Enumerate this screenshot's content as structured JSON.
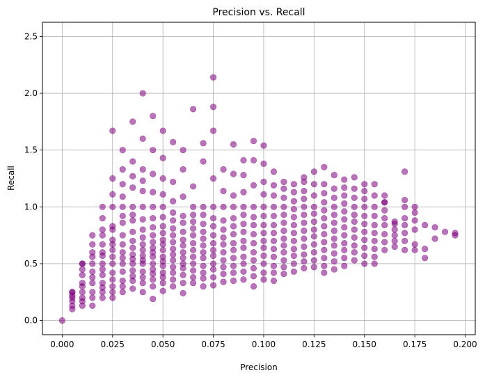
{
  "chart_data": {
    "type": "scatter",
    "title": "Precision vs. Recall",
    "xlabel": "Precision",
    "ylabel": "Recall",
    "xlim": [
      -0.0098,
      0.205
    ],
    "ylim": [
      -0.125,
      2.625
    ],
    "xticks": [
      0.0,
      0.025,
      0.05,
      0.075,
      0.1,
      0.125,
      0.15,
      0.175,
      0.2
    ],
    "xtick_labels": [
      "0.000",
      "0.025",
      "0.050",
      "0.075",
      "0.100",
      "0.125",
      "0.150",
      "0.175",
      "0.200"
    ],
    "yticks": [
      0.0,
      0.5,
      1.0,
      1.5,
      2.0,
      2.5
    ],
    "ytick_labels": [
      "0.0",
      "0.5",
      "1.0",
      "1.5",
      "2.0",
      "2.5"
    ],
    "grid": true,
    "marker_color": "#800080",
    "marker_alpha": 0.55,
    "series": [
      {
        "name": "points",
        "x": [
          0.0,
          0.005,
          0.005,
          0.005,
          0.005,
          0.005,
          0.005,
          0.005,
          0.01,
          0.01,
          0.01,
          0.01,
          0.01,
          0.01,
          0.01,
          0.01,
          0.01,
          0.01,
          0.015,
          0.015,
          0.015,
          0.015,
          0.015,
          0.015,
          0.015,
          0.015,
          0.015,
          0.015,
          0.015,
          0.02,
          0.02,
          0.02,
          0.02,
          0.02,
          0.02,
          0.02,
          0.02,
          0.02,
          0.02,
          0.02,
          0.02,
          0.02,
          0.02,
          0.025,
          0.025,
          0.025,
          0.025,
          0.025,
          0.025,
          0.025,
          0.025,
          0.025,
          0.025,
          0.025,
          0.025,
          0.025,
          0.025,
          0.025,
          0.025,
          0.03,
          0.03,
          0.03,
          0.03,
          0.03,
          0.03,
          0.03,
          0.03,
          0.03,
          0.03,
          0.03,
          0.03,
          0.03,
          0.03,
          0.03,
          0.03,
          0.035,
          0.035,
          0.035,
          0.035,
          0.035,
          0.035,
          0.035,
          0.035,
          0.035,
          0.035,
          0.035,
          0.035,
          0.035,
          0.035,
          0.035,
          0.035,
          0.035,
          0.04,
          0.04,
          0.04,
          0.04,
          0.04,
          0.04,
          0.04,
          0.04,
          0.04,
          0.04,
          0.04,
          0.04,
          0.04,
          0.04,
          0.04,
          0.04,
          0.04,
          0.04,
          0.045,
          0.045,
          0.045,
          0.045,
          0.045,
          0.045,
          0.045,
          0.045,
          0.045,
          0.045,
          0.045,
          0.045,
          0.045,
          0.045,
          0.045,
          0.045,
          0.045,
          0.045,
          0.05,
          0.05,
          0.05,
          0.05,
          0.05,
          0.05,
          0.05,
          0.05,
          0.05,
          0.05,
          0.05,
          0.05,
          0.05,
          0.05,
          0.05,
          0.05,
          0.05,
          0.05,
          0.055,
          0.055,
          0.055,
          0.055,
          0.055,
          0.055,
          0.055,
          0.055,
          0.055,
          0.055,
          0.055,
          0.055,
          0.055,
          0.055,
          0.055,
          0.06,
          0.06,
          0.06,
          0.06,
          0.06,
          0.06,
          0.06,
          0.06,
          0.06,
          0.06,
          0.06,
          0.06,
          0.06,
          0.06,
          0.06,
          0.065,
          0.065,
          0.065,
          0.065,
          0.065,
          0.065,
          0.065,
          0.065,
          0.065,
          0.065,
          0.065,
          0.065,
          0.065,
          0.065,
          0.07,
          0.07,
          0.07,
          0.07,
          0.07,
          0.07,
          0.07,
          0.07,
          0.07,
          0.07,
          0.07,
          0.07,
          0.07,
          0.07,
          0.075,
          0.075,
          0.075,
          0.075,
          0.075,
          0.075,
          0.075,
          0.075,
          0.075,
          0.075,
          0.075,
          0.075,
          0.075,
          0.075,
          0.075,
          0.08,
          0.08,
          0.08,
          0.08,
          0.08,
          0.08,
          0.08,
          0.08,
          0.08,
          0.08,
          0.08,
          0.08,
          0.085,
          0.085,
          0.085,
          0.085,
          0.085,
          0.085,
          0.085,
          0.085,
          0.085,
          0.085,
          0.085,
          0.085,
          0.085,
          0.09,
          0.09,
          0.09,
          0.09,
          0.09,
          0.09,
          0.09,
          0.09,
          0.09,
          0.09,
          0.09,
          0.09,
          0.09,
          0.095,
          0.095,
          0.095,
          0.095,
          0.095,
          0.095,
          0.095,
          0.095,
          0.095,
          0.095,
          0.095,
          0.095,
          0.095,
          0.1,
          0.1,
          0.1,
          0.1,
          0.1,
          0.1,
          0.1,
          0.1,
          0.1,
          0.1,
          0.1,
          0.1,
          0.1,
          0.1,
          0.105,
          0.105,
          0.105,
          0.105,
          0.105,
          0.105,
          0.105,
          0.105,
          0.105,
          0.105,
          0.105,
          0.105,
          0.105,
          0.11,
          0.11,
          0.11,
          0.11,
          0.11,
          0.11,
          0.11,
          0.11,
          0.11,
          0.11,
          0.11,
          0.11,
          0.11,
          0.115,
          0.115,
          0.115,
          0.115,
          0.115,
          0.115,
          0.115,
          0.115,
          0.115,
          0.115,
          0.115,
          0.115,
          0.12,
          0.12,
          0.12,
          0.12,
          0.12,
          0.12,
          0.12,
          0.12,
          0.12,
          0.12,
          0.12,
          0.12,
          0.12,
          0.125,
          0.125,
          0.125,
          0.125,
          0.125,
          0.125,
          0.125,
          0.125,
          0.125,
          0.125,
          0.125,
          0.125,
          0.13,
          0.13,
          0.13,
          0.13,
          0.13,
          0.13,
          0.13,
          0.13,
          0.13,
          0.13,
          0.13,
          0.13,
          0.13,
          0.135,
          0.135,
          0.135,
          0.135,
          0.135,
          0.135,
          0.135,
          0.135,
          0.135,
          0.135,
          0.135,
          0.135,
          0.14,
          0.14,
          0.14,
          0.14,
          0.14,
          0.14,
          0.14,
          0.14,
          0.14,
          0.14,
          0.14,
          0.14,
          0.145,
          0.145,
          0.145,
          0.145,
          0.145,
          0.145,
          0.145,
          0.145,
          0.145,
          0.145,
          0.145,
          0.15,
          0.15,
          0.15,
          0.15,
          0.15,
          0.15,
          0.15,
          0.15,
          0.15,
          0.15,
          0.15,
          0.155,
          0.155,
          0.155,
          0.155,
          0.155,
          0.155,
          0.155,
          0.155,
          0.155,
          0.155,
          0.16,
          0.16,
          0.16,
          0.16,
          0.16,
          0.16,
          0.16,
          0.16,
          0.16,
          0.165,
          0.165,
          0.165,
          0.165,
          0.165,
          0.165,
          0.17,
          0.17,
          0.17,
          0.17,
          0.17,
          0.17,
          0.17,
          0.17,
          0.175,
          0.175,
          0.175,
          0.175,
          0.175,
          0.175,
          0.18,
          0.18,
          0.18,
          0.185,
          0.185,
          0.19,
          0.195,
          0.195
        ],
        "y": [
          0.0,
          0.1,
          0.13,
          0.17,
          0.2,
          0.22,
          0.25,
          0.25,
          0.13,
          0.17,
          0.2,
          0.25,
          0.3,
          0.33,
          0.4,
          0.45,
          0.5,
          0.5,
          0.13,
          0.2,
          0.25,
          0.33,
          0.38,
          0.43,
          0.5,
          0.56,
          0.6,
          0.67,
          0.75,
          0.2,
          0.25,
          0.29,
          0.33,
          0.4,
          0.45,
          0.5,
          0.57,
          0.6,
          0.67,
          0.75,
          0.8,
          0.9,
          1.0,
          0.2,
          0.25,
          0.3,
          0.36,
          0.42,
          0.5,
          0.56,
          0.62,
          0.67,
          0.71,
          0.8,
          0.83,
          1.0,
          1.11,
          1.25,
          1.67,
          0.25,
          0.3,
          0.35,
          0.43,
          0.5,
          0.55,
          0.6,
          0.67,
          0.75,
          0.86,
          0.92,
          1.0,
          1.09,
          1.2,
          1.33,
          1.5,
          0.28,
          0.35,
          0.39,
          0.44,
          0.5,
          0.54,
          0.58,
          0.64,
          0.7,
          0.78,
          0.88,
          0.93,
          1.0,
          1.17,
          1.27,
          1.4,
          1.75,
          0.25,
          0.33,
          0.38,
          0.43,
          0.5,
          0.53,
          0.57,
          0.62,
          0.67,
          0.73,
          0.8,
          0.89,
          1.0,
          1.14,
          1.23,
          1.33,
          1.6,
          2.0,
          0.19,
          0.3,
          0.36,
          0.41,
          0.45,
          0.5,
          0.56,
          0.6,
          0.64,
          0.69,
          0.75,
          0.82,
          0.9,
          1.0,
          1.13,
          1.29,
          1.5,
          1.8,
          0.26,
          0.33,
          0.38,
          0.42,
          0.48,
          0.52,
          0.56,
          0.62,
          0.67,
          0.71,
          0.77,
          0.83,
          0.91,
          1.0,
          1.11,
          1.25,
          1.43,
          1.67,
          0.3,
          0.36,
          0.42,
          0.47,
          0.53,
          0.58,
          0.63,
          0.69,
          0.75,
          0.81,
          0.88,
          0.95,
          1.05,
          1.22,
          1.57,
          0.24,
          0.33,
          0.4,
          0.46,
          0.5,
          0.55,
          0.6,
          0.66,
          0.71,
          0.78,
          0.86,
          0.92,
          1.09,
          1.33,
          1.5,
          0.33,
          0.38,
          0.44,
          0.5,
          0.56,
          0.62,
          0.68,
          0.75,
          0.81,
          0.87,
          0.93,
          1.0,
          1.18,
          1.86,
          0.3,
          0.37,
          0.42,
          0.48,
          0.55,
          0.6,
          0.66,
          0.72,
          0.78,
          0.85,
          0.93,
          1.0,
          1.4,
          1.56,
          0.31,
          0.38,
          0.45,
          0.5,
          0.57,
          0.62,
          0.68,
          0.75,
          0.83,
          0.9,
          1.0,
          1.25,
          1.67,
          1.88,
          2.14,
          0.34,
          0.41,
          0.47,
          0.53,
          0.6,
          0.67,
          0.73,
          0.8,
          0.88,
          1.0,
          1.14,
          1.33,
          0.35,
          0.42,
          0.48,
          0.55,
          0.62,
          0.68,
          0.76,
          0.83,
          0.9,
          1.0,
          1.1,
          1.29,
          1.55,
          0.36,
          0.43,
          0.5,
          0.56,
          0.64,
          0.7,
          0.78,
          0.85,
          0.93,
          1.0,
          1.13,
          1.28,
          1.41,
          0.3,
          0.39,
          0.46,
          0.53,
          0.6,
          0.68,
          0.76,
          0.84,
          0.91,
          1.0,
          1.19,
          1.41,
          1.58,
          0.36,
          0.42,
          0.5,
          0.57,
          0.64,
          0.7,
          0.77,
          0.84,
          0.92,
          1.0,
          1.11,
          1.22,
          1.38,
          1.54,
          0.35,
          0.42,
          0.48,
          0.56,
          0.63,
          0.7,
          0.77,
          0.84,
          0.92,
          1.0,
          1.1,
          1.19,
          1.31,
          0.41,
          0.47,
          0.53,
          0.6,
          0.66,
          0.72,
          0.79,
          0.86,
          0.93,
          1.0,
          1.08,
          1.16,
          1.22,
          0.43,
          0.5,
          0.57,
          0.63,
          0.7,
          0.77,
          0.84,
          0.91,
          0.98,
          1.05,
          1.13,
          1.2,
          0.46,
          0.52,
          0.58,
          0.65,
          0.72,
          0.79,
          0.86,
          0.93,
          1.0,
          1.07,
          1.14,
          1.22,
          1.26,
          0.47,
          0.53,
          0.6,
          0.67,
          0.74,
          0.8,
          0.87,
          0.94,
          1.0,
          1.1,
          1.2,
          1.31,
          0.42,
          0.48,
          0.55,
          0.62,
          0.69,
          0.76,
          0.83,
          0.9,
          0.97,
          1.04,
          1.12,
          1.2,
          1.35,
          0.45,
          0.52,
          0.59,
          0.66,
          0.72,
          0.79,
          0.86,
          0.93,
          1.0,
          1.08,
          1.16,
          1.28,
          0.48,
          0.55,
          0.62,
          0.68,
          0.75,
          0.82,
          0.89,
          0.96,
          1.03,
          1.1,
          1.17,
          1.24,
          0.53,
          0.6,
          0.66,
          0.73,
          0.8,
          0.87,
          0.93,
          1.0,
          1.08,
          1.16,
          1.26,
          0.5,
          0.57,
          0.64,
          0.71,
          0.78,
          0.85,
          0.92,
          1.0,
          1.07,
          1.14,
          1.2,
          0.5,
          0.56,
          0.63,
          0.7,
          0.77,
          0.84,
          0.92,
          1.0,
          1.1,
          1.2,
          0.62,
          0.69,
          0.76,
          0.84,
          0.9,
          0.97,
          1.04,
          1.1,
          1.04,
          0.65,
          0.7,
          0.75,
          0.8,
          0.85,
          0.87,
          0.62,
          0.7,
          0.77,
          0.84,
          0.9,
          1.0,
          1.06,
          1.31,
          0.62,
          0.67,
          0.8,
          0.88,
          0.95,
          1.0,
          0.55,
          0.63,
          0.84,
          0.72,
          0.82,
          0.78,
          0.75,
          0.77
        ]
      }
    ]
  }
}
